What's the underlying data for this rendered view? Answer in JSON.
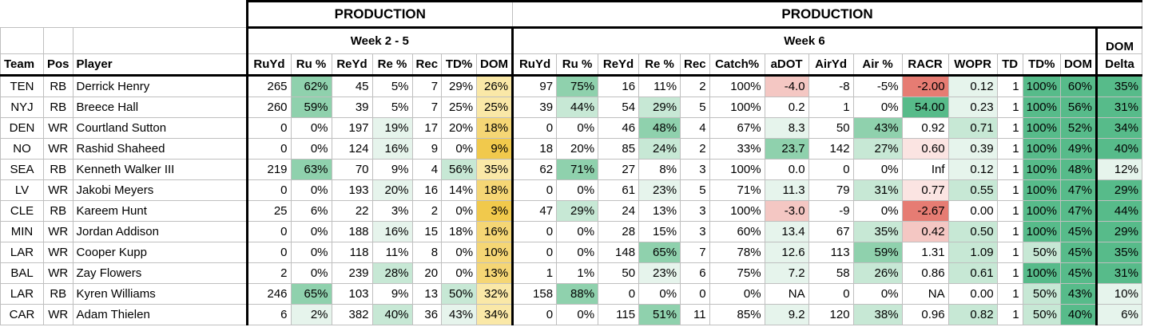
{
  "headers": {
    "production_1": "PRODUCTION",
    "production_2": "PRODUCTION",
    "week_range_1": "Week 2 - 5",
    "week_range_2": "Week 6",
    "dom_top": "DOM",
    "columns": [
      "Team",
      "Pos",
      "Player",
      "RuYd",
      "Ru %",
      "ReYd",
      "Re %",
      "Rec",
      "TD%",
      "DOM",
      "RuYd",
      "Ru %",
      "ReYd",
      "Re %",
      "Rec",
      "Catch%",
      "aDOT",
      "AirYd",
      "Air %",
      "RACR",
      "WOPR",
      "TD",
      "TD%",
      "DOM",
      "Delta"
    ]
  },
  "rows": [
    [
      "TEN",
      "RB",
      "Derrick Henry",
      "265",
      "62%",
      "45",
      "5%",
      "7",
      "29%",
      "26%",
      "97",
      "75%",
      "16",
      "11%",
      "2",
      "100%",
      "-4.0",
      "-8",
      "-5%",
      "-2.00",
      "0.12",
      "1",
      "100%",
      "60%",
      "35%"
    ],
    [
      "NYJ",
      "RB",
      "Breece Hall",
      "260",
      "59%",
      "39",
      "5%",
      "7",
      "25%",
      "25%",
      "39",
      "44%",
      "54",
      "29%",
      "5",
      "100%",
      "0.2",
      "1",
      "0%",
      "54.00",
      "0.23",
      "1",
      "100%",
      "56%",
      "31%"
    ],
    [
      "DEN",
      "WR",
      "Courtland Sutton",
      "0",
      "0%",
      "197",
      "19%",
      "17",
      "20%",
      "18%",
      "0",
      "0%",
      "46",
      "48%",
      "4",
      "67%",
      "8.3",
      "50",
      "43%",
      "0.92",
      "0.71",
      "1",
      "100%",
      "52%",
      "34%"
    ],
    [
      "NO",
      "WR",
      "Rashid Shaheed",
      "0",
      "0%",
      "124",
      "16%",
      "9",
      "0%",
      "9%",
      "18",
      "20%",
      "85",
      "24%",
      "2",
      "33%",
      "23.7",
      "142",
      "27%",
      "0.60",
      "0.39",
      "1",
      "100%",
      "49%",
      "40%"
    ],
    [
      "SEA",
      "RB",
      "Kenneth Walker III",
      "219",
      "63%",
      "70",
      "9%",
      "4",
      "56%",
      "35%",
      "62",
      "71%",
      "27",
      "8%",
      "3",
      "100%",
      "0.0",
      "0",
      "0%",
      "Inf",
      "0.12",
      "1",
      "100%",
      "48%",
      "12%"
    ],
    [
      "LV",
      "WR",
      "Jakobi Meyers",
      "0",
      "0%",
      "193",
      "20%",
      "16",
      "14%",
      "18%",
      "0",
      "0%",
      "61",
      "23%",
      "5",
      "71%",
      "11.3",
      "79",
      "31%",
      "0.77",
      "0.55",
      "1",
      "100%",
      "47%",
      "29%"
    ],
    [
      "CLE",
      "RB",
      "Kareem Hunt",
      "25",
      "6%",
      "22",
      "3%",
      "2",
      "0%",
      "3%",
      "47",
      "29%",
      "24",
      "13%",
      "3",
      "100%",
      "-3.0",
      "-9",
      "0%",
      "-2.67",
      "0.00",
      "1",
      "100%",
      "47%",
      "44%"
    ],
    [
      "MIN",
      "WR",
      "Jordan Addison",
      "0",
      "0%",
      "188",
      "16%",
      "15",
      "18%",
      "16%",
      "0",
      "0%",
      "28",
      "15%",
      "3",
      "60%",
      "13.4",
      "67",
      "35%",
      "0.42",
      "0.50",
      "1",
      "100%",
      "45%",
      "29%"
    ],
    [
      "LAR",
      "WR",
      "Cooper Kupp",
      "0",
      "0%",
      "118",
      "11%",
      "8",
      "0%",
      "10%",
      "0",
      "0%",
      "148",
      "65%",
      "7",
      "78%",
      "12.6",
      "113",
      "59%",
      "1.31",
      "1.09",
      "1",
      "50%",
      "45%",
      "35%"
    ],
    [
      "BAL",
      "WR",
      "Zay Flowers",
      "2",
      "0%",
      "239",
      "28%",
      "20",
      "0%",
      "13%",
      "1",
      "1%",
      "50",
      "23%",
      "6",
      "75%",
      "7.2",
      "58",
      "26%",
      "0.86",
      "0.61",
      "1",
      "100%",
      "45%",
      "31%"
    ],
    [
      "LAR",
      "RB",
      "Kyren Williams",
      "246",
      "65%",
      "103",
      "9%",
      "13",
      "50%",
      "32%",
      "158",
      "88%",
      "0",
      "0%",
      "0",
      "0%",
      "NA",
      "0",
      "0%",
      "NA",
      "0.00",
      "1",
      "50%",
      "43%",
      "10%"
    ],
    [
      "CAR",
      "WR",
      "Adam Thielen",
      "6",
      "2%",
      "382",
      "40%",
      "36",
      "43%",
      "34%",
      "0",
      "0%",
      "115",
      "51%",
      "11",
      "85%",
      "9.2",
      "120",
      "38%",
      "0.96",
      "0.82",
      "1",
      "50%",
      "40%",
      "6%"
    ]
  ],
  "colors": {
    "green_strong": "#57bb8a",
    "green_mid": "#8fd1ad",
    "green_light": "#c7e8d5",
    "green_pale": "#e6f4ec",
    "yellow_strong": "#f1c94c",
    "yellow_mid": "#f5d675",
    "yellow_light": "#fae8a7",
    "red_strong": "#e67c73",
    "red_light": "#f4c7c3",
    "red_pale": "#fbe4e2"
  },
  "cell_colors": [
    [
      "",
      "",
      "",
      "",
      "green_mid",
      "",
      "",
      "",
      "",
      "yellow_light",
      "",
      "green_mid",
      "",
      "",
      "",
      "",
      "red_light",
      "",
      "",
      "red_strong",
      "green_pale",
      "",
      "green_strong",
      "green_strong",
      "green_strong"
    ],
    [
      "",
      "",
      "",
      "",
      "green_mid",
      "",
      "",
      "",
      "",
      "yellow_light",
      "",
      "green_light",
      "",
      "green_light",
      "",
      "",
      "",
      "",
      "",
      "green_strong",
      "green_pale",
      "",
      "green_strong",
      "green_strong",
      "green_strong"
    ],
    [
      "",
      "",
      "",
      "",
      "",
      "",
      "green_pale",
      "",
      "",
      "yellow_mid",
      "",
      "",
      "",
      "green_mid",
      "",
      "",
      "green_pale",
      "",
      "green_mid",
      "",
      "green_light",
      "",
      "green_strong",
      "green_strong",
      "green_strong"
    ],
    [
      "",
      "",
      "",
      "",
      "",
      "",
      "green_pale",
      "",
      "",
      "yellow_strong",
      "",
      "",
      "",
      "green_light",
      "",
      "",
      "green_mid",
      "",
      "green_light",
      "red_pale",
      "green_pale",
      "",
      "green_strong",
      "green_strong",
      "green_strong"
    ],
    [
      "",
      "",
      "",
      "",
      "green_mid",
      "",
      "",
      "",
      "green_light",
      "yellow_light",
      "",
      "green_mid",
      "",
      "",
      "",
      "",
      "",
      "",
      "",
      "",
      "green_pale",
      "",
      "green_strong",
      "green_strong",
      "green_pale"
    ],
    [
      "",
      "",
      "",
      "",
      "",
      "",
      "green_pale",
      "",
      "",
      "yellow_mid",
      "",
      "",
      "",
      "green_pale",
      "",
      "",
      "green_pale",
      "",
      "green_light",
      "red_pale",
      "green_light",
      "",
      "green_strong",
      "green_strong",
      "green_strong"
    ],
    [
      "",
      "",
      "",
      "",
      "",
      "",
      "",
      "",
      "",
      "yellow_strong",
      "",
      "green_light",
      "",
      "",
      "",
      "",
      "red_light",
      "",
      "",
      "red_strong",
      "",
      "",
      "green_strong",
      "green_strong",
      "green_strong"
    ],
    [
      "",
      "",
      "",
      "",
      "",
      "",
      "green_pale",
      "",
      "",
      "yellow_mid",
      "",
      "",
      "",
      "",
      "",
      "",
      "green_pale",
      "",
      "green_light",
      "red_light",
      "green_light",
      "",
      "green_strong",
      "green_strong",
      "green_strong"
    ],
    [
      "",
      "",
      "",
      "",
      "",
      "",
      "",
      "",
      "",
      "yellow_mid",
      "",
      "",
      "",
      "green_mid",
      "",
      "",
      "green_pale",
      "",
      "green_mid",
      "",
      "green_light",
      "",
      "green_light",
      "green_strong",
      "green_strong"
    ],
    [
      "",
      "",
      "",
      "",
      "",
      "",
      "green_light",
      "",
      "",
      "yellow_mid",
      "",
      "",
      "",
      "green_pale",
      "",
      "",
      "green_pale",
      "",
      "green_light",
      "",
      "green_light",
      "",
      "green_strong",
      "green_strong",
      "green_strong"
    ],
    [
      "",
      "",
      "",
      "",
      "green_mid",
      "",
      "",
      "",
      "green_light",
      "yellow_light",
      "",
      "green_mid",
      "",
      "",
      "",
      "",
      "",
      "",
      "",
      "",
      "",
      "",
      "green_light",
      "green_strong",
      "green_pale"
    ],
    [
      "",
      "",
      "",
      "",
      "green_pale",
      "",
      "green_light",
      "",
      "green_pale",
      "yellow_light",
      "",
      "",
      "",
      "green_mid",
      "",
      "",
      "green_pale",
      "",
      "green_light",
      "",
      "green_light",
      "",
      "green_light",
      "green_strong",
      "green_pale"
    ]
  ]
}
